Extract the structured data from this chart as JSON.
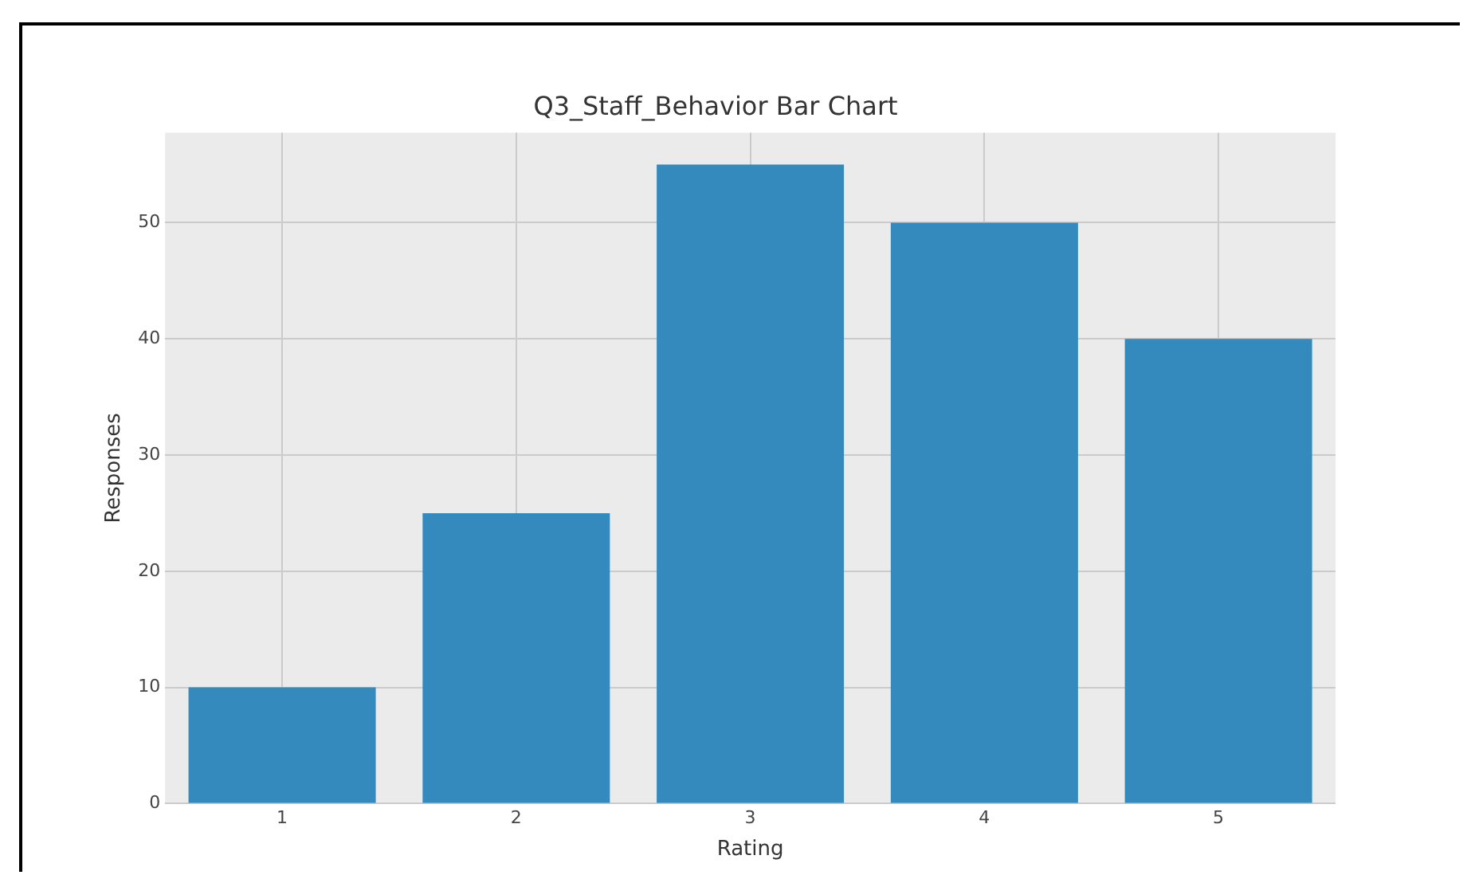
{
  "chart_data": {
    "type": "bar",
    "title": "Q3_Staff_Behavior Bar Chart",
    "xlabel": "Rating",
    "ylabel": "Responses",
    "categories": [
      "1",
      "2",
      "3",
      "4",
      "5"
    ],
    "values": [
      10,
      25,
      55,
      50,
      40
    ],
    "color": "#348abd",
    "ylim": [
      0,
      57.75
    ],
    "yticks": [
      0,
      10,
      20,
      30,
      40,
      50
    ],
    "grid": true
  }
}
